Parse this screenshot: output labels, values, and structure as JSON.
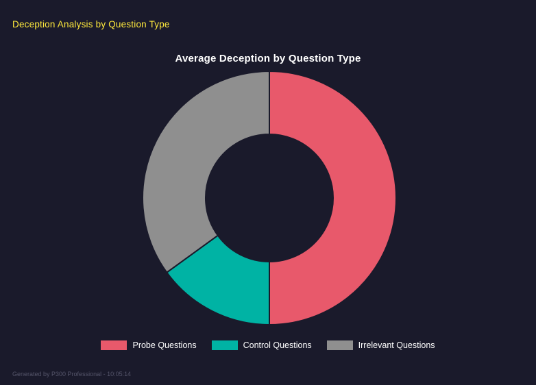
{
  "page": {
    "title": "Deception Analysis by Question Type",
    "footer": "Generated by P300 Professional - 10:05:14",
    "background": "#1a1a2b",
    "header_color": "#ffe93c"
  },
  "chart_data": {
    "type": "pie",
    "subtype": "donut",
    "title": "Average Deception by Question Type",
    "categories": [
      "Probe Questions",
      "Control Questions",
      "Irrelevant Questions"
    ],
    "values": [
      50,
      15,
      35
    ],
    "values_note": "percent share of ring, estimated from arc angles",
    "colors": [
      "#e8596b",
      "#00b3a4",
      "#8f8f8f"
    ],
    "cutout_percent": 50,
    "start_angle_deg": 0,
    "legend_position": "bottom",
    "grid": false
  }
}
